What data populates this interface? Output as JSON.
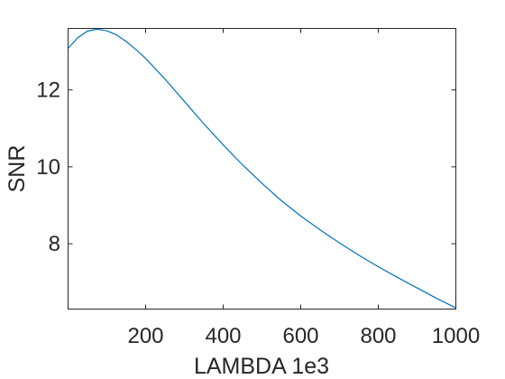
{
  "chart_data": {
    "type": "line",
    "title": "",
    "xlabel": "LAMBDA 1e3",
    "ylabel": "SNR",
    "xlim": [
      0,
      1000
    ],
    "ylim": [
      6.3,
      13.6
    ],
    "xticks": [
      200,
      400,
      600,
      800,
      1000
    ],
    "xtick_labels": [
      "200",
      "400",
      "600",
      "800",
      "1000"
    ],
    "yticks": [
      8,
      10,
      12
    ],
    "ytick_labels": [
      "8",
      "10",
      "12"
    ],
    "grid": false,
    "series": [
      {
        "name": "SNR",
        "color": "#0072BD",
        "x": [
          0,
          25,
          50,
          75,
          100,
          125,
          150,
          175,
          200,
          250,
          300,
          350,
          400,
          450,
          500,
          550,
          600,
          650,
          700,
          750,
          800,
          850,
          900,
          950,
          1000
        ],
        "y": [
          13.08,
          13.36,
          13.53,
          13.58,
          13.54,
          13.43,
          13.26,
          13.05,
          12.82,
          12.28,
          11.7,
          11.12,
          10.57,
          10.05,
          9.57,
          9.12,
          8.72,
          8.36,
          8.02,
          7.7,
          7.4,
          7.12,
          6.85,
          6.58,
          6.33
        ]
      }
    ]
  }
}
